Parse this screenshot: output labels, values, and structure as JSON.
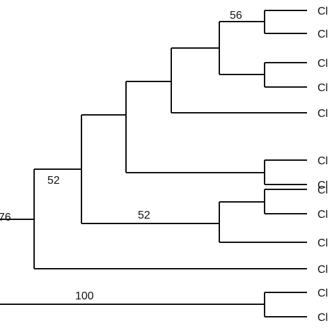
{
  "tree": {
    "branch_color": "#111111",
    "support_values": {
      "a": "56",
      "b": "52",
      "c": "52",
      "d": "76",
      "e": "100"
    },
    "leaf_labels": [
      "Cl",
      "Cl",
      "Cl",
      "Cl",
      "Cl",
      "Cl",
      "Cl",
      "Cl",
      "Cl",
      "Cl",
      "Cl",
      "Cl",
      "Cl"
    ]
  }
}
